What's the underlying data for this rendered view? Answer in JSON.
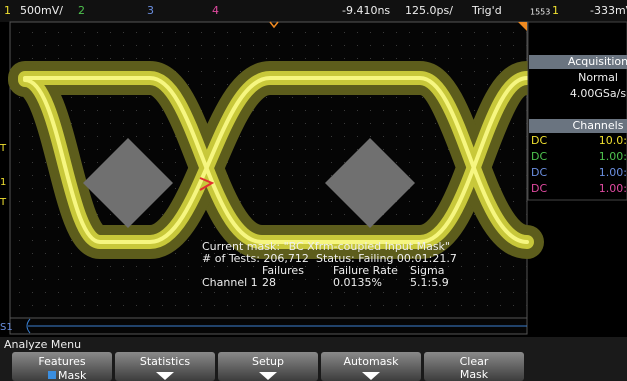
{
  "top_bar": {
    "ch1": "1",
    "ch1_scale": "500mV/",
    "ch2": "2",
    "ch3": "3",
    "ch4": "4",
    "delay": "-9.410ns",
    "timebase": "125.0ps/",
    "trigger_status": "Trig'd",
    "trigger_counter": "1553",
    "trigger_source": "1",
    "trigger_level": "-333mV"
  },
  "markers": [
    "T",
    "1",
    "T",
    "S1"
  ],
  "mask_stats": {
    "current_mask": "Current mask: \"BC Xfrm-coupled Input Mask\"",
    "tests": "# of Tests: 206,712",
    "status": "Status: Failing 00:01:21.7",
    "headers": [
      "Failures",
      "Failure Rate",
      "Sigma"
    ],
    "row": [
      "Channel 1",
      "28",
      "0.0135%",
      "5.1:5.9"
    ]
  },
  "side_panel": {
    "acquisition": {
      "title": "Acquisition",
      "mode": "Normal",
      "rate": "4.00GSa/s"
    },
    "channels": {
      "title": "Channels",
      "rows": [
        [
          "DC",
          "10.0:"
        ],
        [
          "DC",
          "1.00:"
        ],
        [
          "DC",
          "1.00:"
        ],
        [
          "DC",
          "1.00:"
        ]
      ]
    }
  },
  "menu": {
    "title": "Analyze Menu",
    "softkeys": [
      {
        "label": "Features",
        "option": "Mask"
      },
      {
        "label": "Statistics"
      },
      {
        "label": "Setup"
      },
      {
        "label": "Automask"
      },
      {
        "label": "Clear",
        "sublabel": "Mask"
      }
    ]
  }
}
